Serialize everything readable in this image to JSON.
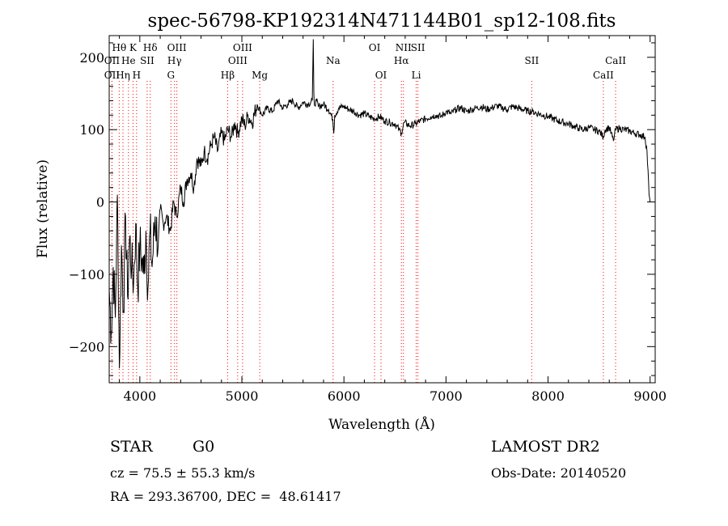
{
  "chart_data": {
    "type": "line",
    "title": "spec-56798-KP192314N471144B01_sp12-108.fits",
    "xlabel": "Wavelength (Å)",
    "ylabel": "Flux (relative)",
    "xlim": [
      3700,
      9050
    ],
    "ylim": [
      -250,
      230
    ],
    "x_ticks": [
      4000,
      5000,
      6000,
      7000,
      8000,
      9000
    ],
    "y_ticks": [
      -200,
      -100,
      0,
      100,
      200
    ],
    "grid": false,
    "series": [
      {
        "x": [
          3700,
          3720,
          3740,
          3760,
          3780,
          3800,
          3820,
          3840,
          3860,
          3880,
          3900,
          3920,
          3940,
          3960,
          3980,
          4000,
          4020,
          4040,
          4060,
          4080,
          4100,
          4120,
          4150,
          4180,
          4200,
          4230,
          4260,
          4300,
          4330,
          4360,
          4400,
          4430,
          4460,
          4500,
          4530,
          4560,
          4600,
          4630,
          4660,
          4700,
          4730,
          4760,
          4800,
          4830,
          4860,
          4900,
          4930,
          4960,
          5000,
          5030,
          5060,
          5100,
          5150,
          5200,
          5250,
          5300,
          5350,
          5400,
          5450,
          5500,
          5550,
          5600,
          5650,
          5690,
          5700,
          5705,
          5710,
          5730,
          5750,
          5800,
          5850,
          5890,
          5900,
          5910,
          5950,
          6000,
          6050,
          6100,
          6150,
          6200,
          6250,
          6300,
          6350,
          6400,
          6450,
          6500,
          6540,
          6563,
          6590,
          6650,
          6700,
          6750,
          6800,
          6850,
          6900,
          6950,
          7000,
          7050,
          7100,
          7150,
          7200,
          7250,
          7300,
          7350,
          7400,
          7450,
          7500,
          7550,
          7600,
          7650,
          7700,
          7750,
          7800,
          7850,
          7900,
          7950,
          8000,
          8050,
          8100,
          8150,
          8200,
          8250,
          8300,
          8350,
          8400,
          8450,
          8500,
          8542,
          8560,
          8600,
          8640,
          8662,
          8700,
          8750,
          8800,
          8850,
          8900,
          8950,
          8970,
          8990,
          9000
        ],
        "y": [
          -120,
          -180,
          -90,
          -160,
          10,
          -230,
          -60,
          -150,
          -20,
          -130,
          -50,
          -90,
          -110,
          -30,
          -120,
          -60,
          -80,
          -100,
          -40,
          -120,
          -40,
          -90,
          -20,
          -60,
          -10,
          -30,
          -20,
          -40,
          0,
          -20,
          20,
          0,
          30,
          40,
          20,
          60,
          50,
          70,
          60,
          80,
          90,
          70,
          95,
          85,
          100,
          90,
          110,
          95,
          115,
          105,
          120,
          110,
          135,
          120,
          130,
          125,
          140,
          130,
          135,
          140,
          130,
          138,
          135,
          140,
          225,
          150,
          135,
          140,
          132,
          135,
          128,
          115,
          95,
          120,
          130,
          132,
          128,
          125,
          120,
          122,
          118,
          115,
          118,
          112,
          110,
          108,
          100,
          95,
          110,
          105,
          108,
          112,
          115,
          118,
          120,
          118,
          125,
          122,
          128,
          130,
          125,
          128,
          130,
          132,
          128,
          130,
          133,
          130,
          128,
          132,
          130,
          128,
          126,
          125,
          122,
          120,
          118,
          115,
          112,
          110,
          108,
          105,
          102,
          100,
          103,
          100,
          98,
          90,
          100,
          103,
          85,
          100,
          102,
          100,
          98,
          95,
          93,
          90,
          70,
          10,
          0
        ]
      }
    ],
    "spectral_lines": [
      {
        "label": "Hθ",
        "wavelength": 3798,
        "row": 1
      },
      {
        "label": "OII",
        "wavelength": 3727,
        "row": 2
      },
      {
        "label": "OII",
        "wavelength": 3727,
        "row": 3
      },
      {
        "label": "K",
        "wavelength": 3934,
        "row": 1
      },
      {
        "label": "Hη",
        "wavelength": 3835,
        "row": 3
      },
      {
        "label": "He",
        "wavelength": 3889,
        "row": 2
      },
      {
        "label": "H",
        "wavelength": 3968,
        "row": 3
      },
      {
        "label": "SII",
        "wavelength": 4072,
        "row": 2
      },
      {
        "label": "Hδ",
        "wavelength": 4102,
        "row": 1
      },
      {
        "label": "OIII",
        "wavelength": 4363,
        "row": 1
      },
      {
        "label": "Hγ",
        "wavelength": 4340,
        "row": 2
      },
      {
        "label": "G",
        "wavelength": 4305,
        "row": 3
      },
      {
        "label": "OIII",
        "wavelength": 5007,
        "row": 1
      },
      {
        "label": "OIII",
        "wavelength": 4959,
        "row": 2
      },
      {
        "label": "Hβ",
        "wavelength": 4861,
        "row": 3
      },
      {
        "label": "Mg",
        "wavelength": 5175,
        "row": 3
      },
      {
        "label": "Na",
        "wavelength": 5894,
        "row": 2
      },
      {
        "label": "OI",
        "wavelength": 6300,
        "row": 1
      },
      {
        "label": "OI",
        "wavelength": 6363,
        "row": 3
      },
      {
        "label": "NII",
        "wavelength": 6583,
        "row": 1
      },
      {
        "label": "SII",
        "wavelength": 6725,
        "row": 1
      },
      {
        "label": "Hα",
        "wavelength": 6563,
        "row": 2
      },
      {
        "label": "Li",
        "wavelength": 6708,
        "row": 3
      },
      {
        "label": "SII",
        "wavelength": 7840,
        "row": 2
      },
      {
        "label": "CaII",
        "wavelength": 8662,
        "row": 2
      },
      {
        "label": "CaII",
        "wavelength": 8542,
        "row": 3
      }
    ],
    "line_marker_color": "#ff0000"
  },
  "info": {
    "class_label": "STAR",
    "subclass_label": "G0",
    "survey_label": "LAMOST DR2",
    "redshift_text": "cz = 75.5 ± 55.3 km/s",
    "obs_date_text": "Obs-Date: 20140520",
    "coords_text": "RA = 293.36700, DEC =  48.61417"
  }
}
